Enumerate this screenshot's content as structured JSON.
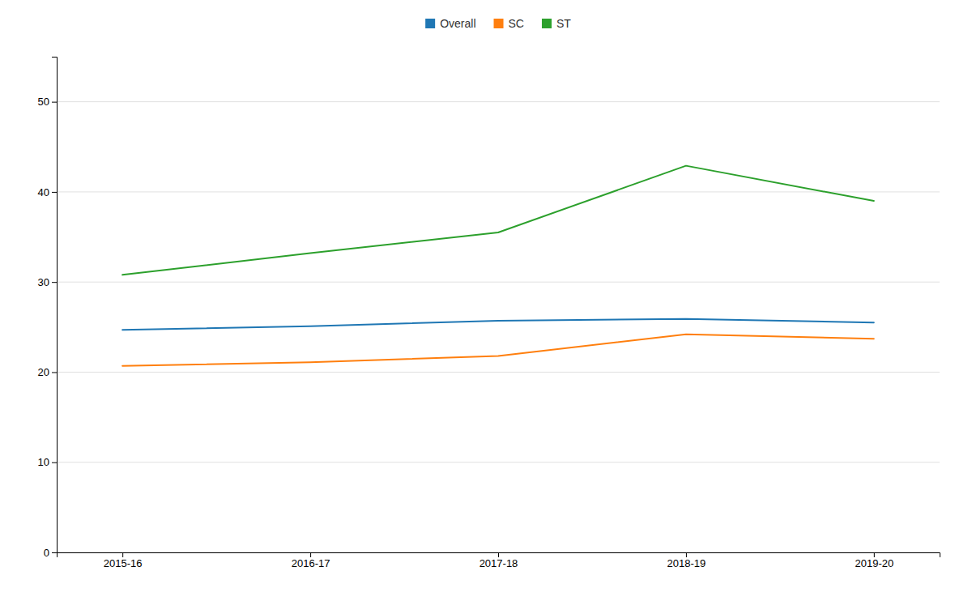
{
  "chart_data": {
    "type": "line",
    "categories": [
      "2015-16",
      "2016-17",
      "2017-18",
      "2018-19",
      "2019-20"
    ],
    "series": [
      {
        "name": "Overall",
        "values": [
          24.7,
          25.1,
          25.7,
          25.9,
          25.5
        ]
      },
      {
        "name": "SC",
        "values": [
          20.7,
          21.1,
          21.8,
          24.2,
          23.7
        ]
      },
      {
        "name": "ST",
        "values": [
          30.8,
          33.2,
          35.5,
          42.9,
          39.0
        ]
      }
    ],
    "ylim": [
      0,
      55
    ],
    "yticks": [
      0,
      10,
      20,
      30,
      40,
      50
    ],
    "grid": true,
    "legend": "top"
  }
}
